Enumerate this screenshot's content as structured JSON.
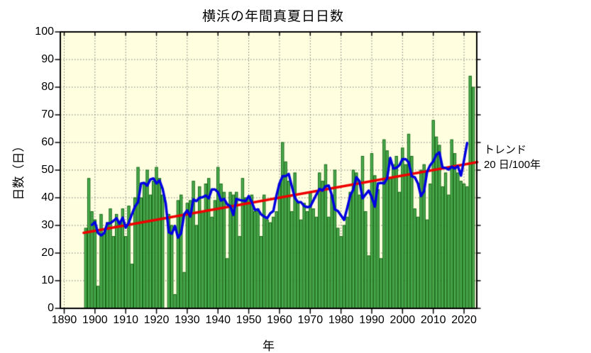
{
  "title": "横浜の年間真夏日日数",
  "x_axis": {
    "label": "年",
    "ticks": [
      1890,
      1900,
      1910,
      1920,
      1930,
      1940,
      1950,
      1960,
      1970,
      1980,
      1990,
      2000,
      2010,
      2020
    ]
  },
  "y_axis": {
    "label": "日数（日）",
    "ticks": [
      0,
      10,
      20,
      30,
      40,
      50,
      60,
      70,
      80,
      90,
      100
    ]
  },
  "annotation": {
    "line1": "トレンド",
    "line2": "20 日/100年"
  },
  "colors": {
    "plot_background": "#FFFFE0",
    "bar_fill": "#4CAD50",
    "bar_edge": "#156815",
    "moving_average_line": "#0000E0",
    "trend_line": "#EE0000",
    "grid": "#777777",
    "axis": "#000000"
  },
  "chart_data": {
    "type": "bar",
    "title": "横浜の年間真夏日日数",
    "xlabel": "年",
    "ylabel": "日数（日）",
    "xlim": [
      1888.7,
      2024.3
    ],
    "ylim": [
      0,
      100
    ],
    "grid": "dotted, every 10 days and every 10 years",
    "start_year": 1897,
    "end_year": 2023,
    "missing_years": [
      1923
    ],
    "values": [
      29,
      47,
      35,
      32,
      8,
      34,
      27,
      31,
      36,
      26,
      34,
      31,
      36,
      26,
      37,
      16,
      40,
      51,
      40,
      45,
      50,
      41,
      46,
      51,
      47,
      41,
      null,
      34,
      30,
      5,
      39,
      41,
      13,
      38,
      39,
      46,
      30,
      44,
      35,
      45,
      47,
      33,
      39,
      51,
      45,
      42,
      18,
      42,
      41,
      42,
      26,
      47,
      40,
      40,
      41,
      35,
      36,
      26,
      41,
      32,
      31,
      33,
      35,
      45,
      60,
      53,
      46,
      35,
      49,
      38,
      32,
      38,
      35,
      42,
      36,
      33,
      49,
      46,
      52,
      33,
      41,
      50,
      29,
      26,
      30,
      33,
      42,
      50,
      49,
      41,
      55,
      35,
      19,
      56,
      48,
      43,
      18,
      61,
      57,
      47,
      52,
      55,
      42,
      58,
      52,
      63,
      55,
      36,
      33,
      50,
      52,
      32,
      45,
      68,
      62,
      59,
      44,
      49,
      41,
      61,
      56,
      49,
      46,
      45,
      44,
      84,
      80
    ],
    "moving_average_window": 5,
    "trend": {
      "rate_per_100yr": 20,
      "start_year": 1896.3,
      "start_value": 27.3,
      "end_year": 2024.3,
      "end_value": 52.9
    }
  }
}
